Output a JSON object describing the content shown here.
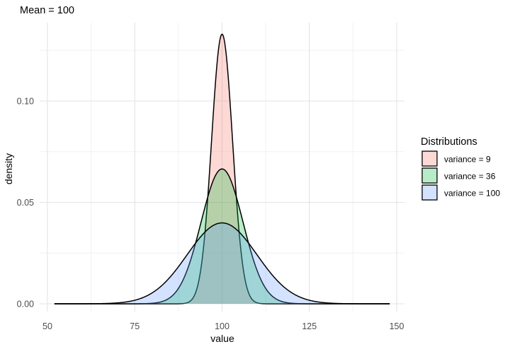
{
  "chart_data": {
    "type": "area",
    "title": "Mean = 100",
    "xlabel": "value",
    "ylabel": "density",
    "xlim": [
      50,
      150
    ],
    "ylim": [
      0,
      0.135
    ],
    "x_ticks": [
      50,
      75,
      100,
      125,
      150
    ],
    "x_tick_labels": [
      "50",
      "75",
      "100",
      "125",
      "150"
    ],
    "y_ticks": [
      0,
      0.05,
      0.1
    ],
    "y_tick_labels": [
      "0.00",
      "0.05",
      "0.10"
    ],
    "grid": true,
    "legend_title": "Distributions",
    "legend_position": "right",
    "mean": 100,
    "x_range": [
      52,
      148
    ],
    "series": [
      {
        "name": "variance = 9",
        "variance": 9,
        "fill": "#F8766D",
        "peak_density": 0.133
      },
      {
        "name": "variance = 36",
        "variance": 36,
        "fill": "#00BA38",
        "peak_density": 0.0665
      },
      {
        "name": "variance = 100",
        "variance": 100,
        "fill": "#619CFF",
        "peak_density": 0.0399
      }
    ]
  }
}
